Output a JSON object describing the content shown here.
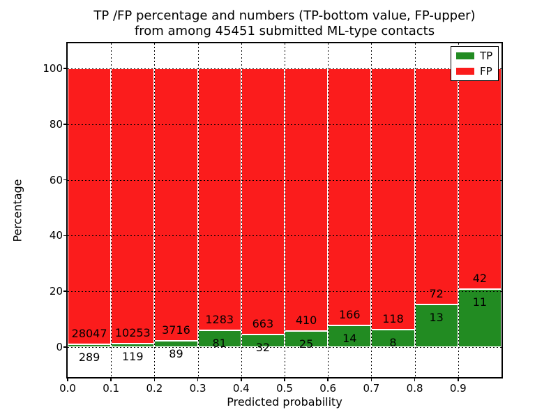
{
  "title": {
    "line1": "TP /FP percentage and numbers (TP-bottom value, FP-upper)",
    "line2": "from among 45451 submitted ML-type contacts"
  },
  "axes": {
    "xlabel": "Predicted probability",
    "ylabel": "Percentage",
    "x_tick_labels": [
      "0.0",
      "0.1",
      "0.2",
      "0.3",
      "0.4",
      "0.5",
      "0.6",
      "0.7",
      "0.8",
      "0.9"
    ],
    "y_tick_labels": [
      "0",
      "20",
      "40",
      "60",
      "80",
      "100"
    ],
    "y_ticks": [
      0,
      20,
      40,
      60,
      80,
      100
    ],
    "xlim": [
      0.0,
      1.0
    ],
    "ylim": [
      -10.9,
      109.2
    ],
    "grid_style": "dotted"
  },
  "legend": {
    "position": "upper-right",
    "items": [
      {
        "label": "TP",
        "color": "#228b22"
      },
      {
        "label": "FP",
        "color": "#fb1c1c"
      }
    ]
  },
  "chart_data": {
    "type": "bar",
    "stacked": true,
    "normalized": "each bar totals 100 percent",
    "title": "TP /FP percentage and numbers (TP-bottom value, FP-upper) from among 45451 submitted ML-type contacts",
    "xlabel": "Predicted probability",
    "ylabel": "Percentage",
    "total_contacts": 45451,
    "bins": [
      "0.0-0.1",
      "0.1-0.2",
      "0.2-0.3",
      "0.3-0.4",
      "0.4-0.5",
      "0.5-0.6",
      "0.6-0.7",
      "0.7-0.8",
      "0.8-0.9",
      "0.9-1.0"
    ],
    "series": [
      {
        "name": "TP",
        "color": "#228b22",
        "counts": [
          289,
          119,
          89,
          81,
          32,
          25,
          14,
          8,
          13,
          11
        ]
      },
      {
        "name": "FP",
        "color": "#fb1c1c",
        "counts": [
          28047,
          10253,
          3716,
          1283,
          663,
          410,
          166,
          118,
          72,
          42
        ]
      }
    ],
    "tp_percent_per_bin": [
      1.02,
      1.15,
      2.34,
      5.94,
      4.6,
      5.75,
      7.78,
      6.35,
      15.29,
      20.75
    ],
    "fp_percent_per_bin": [
      98.98,
      98.85,
      97.66,
      94.06,
      95.4,
      94.25,
      92.22,
      93.65,
      84.71,
      79.25
    ]
  }
}
